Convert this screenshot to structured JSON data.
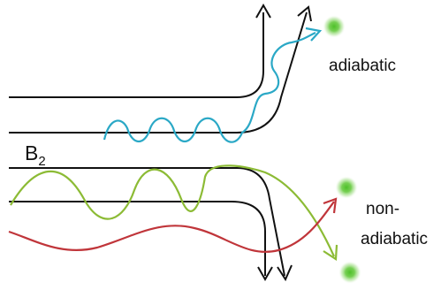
{
  "labels": {
    "field": "B",
    "field_subscript": "2",
    "adiabatic": "adiabatic",
    "non_adiabatic_line1": "non-",
    "non_adiabatic_line2": "adiabatic"
  },
  "colors": {
    "field_lines": "#111111",
    "adiabatic_wave": "#2aa8c6",
    "green_wave": "#8cbb35",
    "red_wave": "#c0353a",
    "particle_glow": "#5cc238"
  },
  "icons": {
    "particle": "green-glowing-dot",
    "arrow": "arrowhead"
  }
}
